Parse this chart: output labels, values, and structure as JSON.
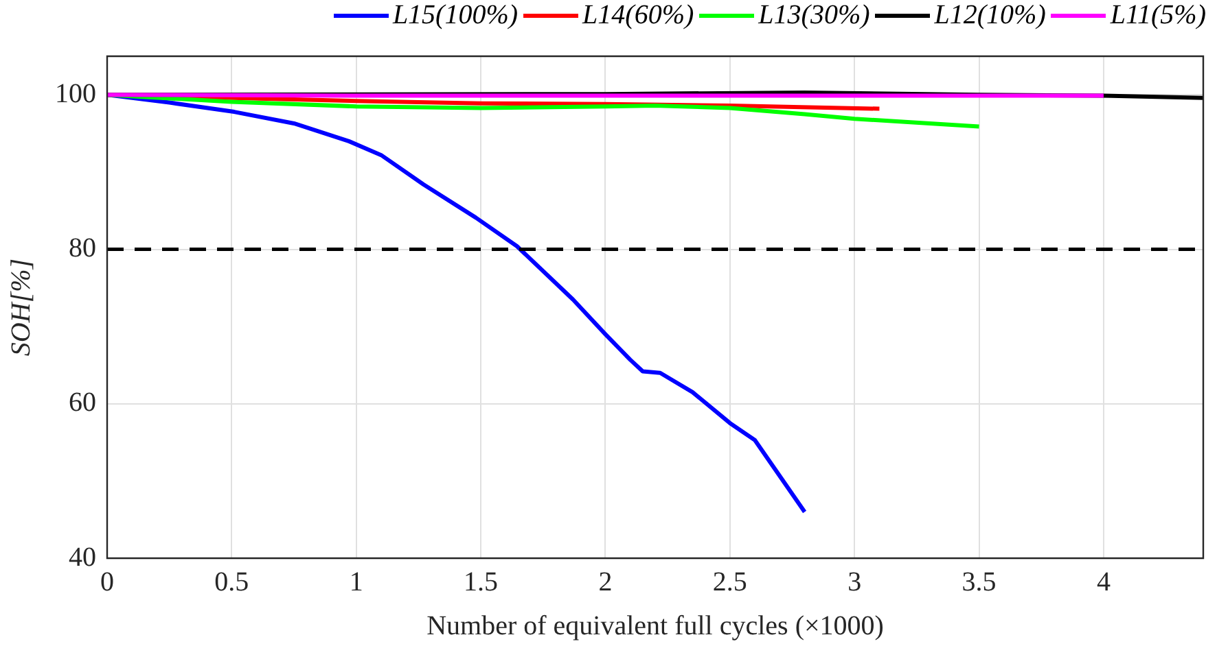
{
  "chart_data": {
    "type": "line",
    "xlabel": "Number of equivalent full cycles (×1000)",
    "ylabel": "SOH[%]",
    "xlim": [
      0,
      4.4
    ],
    "xticks": [
      0,
      0.5,
      1,
      1.5,
      2,
      2.5,
      3,
      3.5,
      4
    ],
    "ylim": [
      40,
      105
    ],
    "yticks": [
      40,
      60,
      80,
      100
    ],
    "grid": true,
    "legend": "top",
    "line_style": "solid",
    "marker": "none",
    "ref_lines": [
      {
        "axis": "y",
        "value": 80,
        "color": "#000000",
        "line_style": "dashed"
      }
    ],
    "series": [
      {
        "name": "L15(100%)",
        "color": "#0000ff",
        "x": [
          0,
          0.25,
          0.51,
          0.75,
          0.97,
          1.1,
          1.27,
          1.48,
          1.645,
          1.87,
          2.0,
          2.1,
          2.15,
          2.22,
          2.35,
          2.5,
          2.6,
          2.8
        ],
        "values": [
          100,
          99,
          97.8,
          96.3,
          94,
          92.2,
          88.4,
          84.1,
          80.4,
          73.5,
          69,
          65.7,
          64.2,
          64,
          61.5,
          57.5,
          55.3,
          46
        ]
      },
      {
        "name": "L14(60%)",
        "color": "#ff0000",
        "x": [
          0,
          0.5,
          1,
          1.5,
          2,
          2.5,
          3.1
        ],
        "values": [
          100,
          99.6,
          99.2,
          98.9,
          98.8,
          98.6,
          98.2
        ]
      },
      {
        "name": "L13(30%)",
        "color": "#00ff00",
        "x": [
          0,
          0.5,
          1,
          1.5,
          2,
          2.2,
          2.5,
          2.8,
          3.0,
          3.5
        ],
        "values": [
          100,
          99.1,
          98.5,
          98.3,
          98.5,
          98.6,
          98.3,
          97.5,
          96.9,
          95.9
        ]
      },
      {
        "name": "L12(10%)",
        "color": "#000000",
        "x": [
          0,
          2,
          2.8,
          3.5,
          4,
          4.4
        ],
        "values": [
          100,
          100.1,
          100.3,
          100,
          99.9,
          99.6
        ]
      },
      {
        "name": "L11(5%)",
        "color": "#ff00ff",
        "x": [
          0,
          1,
          2,
          3,
          4
        ],
        "values": [
          100,
          99.9,
          99.9,
          99.9,
          99.9
        ]
      }
    ]
  }
}
